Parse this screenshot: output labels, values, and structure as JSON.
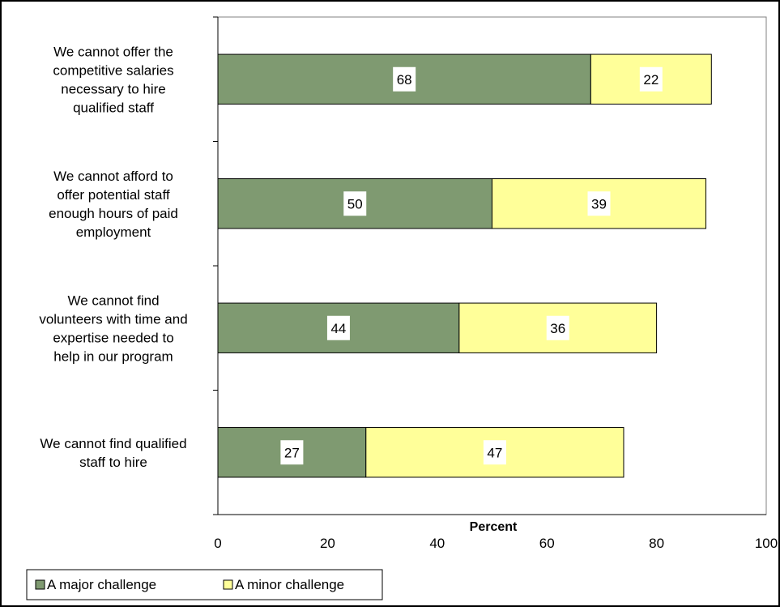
{
  "chart_data": {
    "type": "bar",
    "orientation": "horizontal",
    "stacked": true,
    "categories": [
      "We cannot offer the competitive salaries necessary to hire qualified staff",
      "We cannot afford to offer potential staff enough hours of paid employment",
      "We cannot find volunteers with time and expertise needed to help in our program",
      "We cannot find qualified staff to hire"
    ],
    "category_lines": [
      [
        "We cannot offer the",
        "competitive salaries",
        "necessary to hire",
        "qualified staff"
      ],
      [
        "We cannot afford to",
        "offer potential staff",
        "enough hours of paid",
        "employment"
      ],
      [
        "We cannot find",
        "volunteers with time and",
        "expertise needed to",
        "help in our program"
      ],
      [
        "We cannot find qualified",
        "staff to hire"
      ]
    ],
    "series": [
      {
        "name": "A major challenge",
        "values": [
          68,
          50,
          44,
          27
        ],
        "color": "#7f9a71"
      },
      {
        "name": "A minor challenge",
        "values": [
          22,
          39,
          36,
          47
        ],
        "color": "#ffff99"
      }
    ],
    "xlabel": "Percent",
    "ylabel": "",
    "title": "",
    "xlim": [
      0,
      100
    ],
    "xticks": [
      "0",
      "20",
      "40",
      "60",
      "80",
      "100"
    ],
    "grid": false,
    "data_labels": true,
    "legend_position": "bottom-left"
  }
}
